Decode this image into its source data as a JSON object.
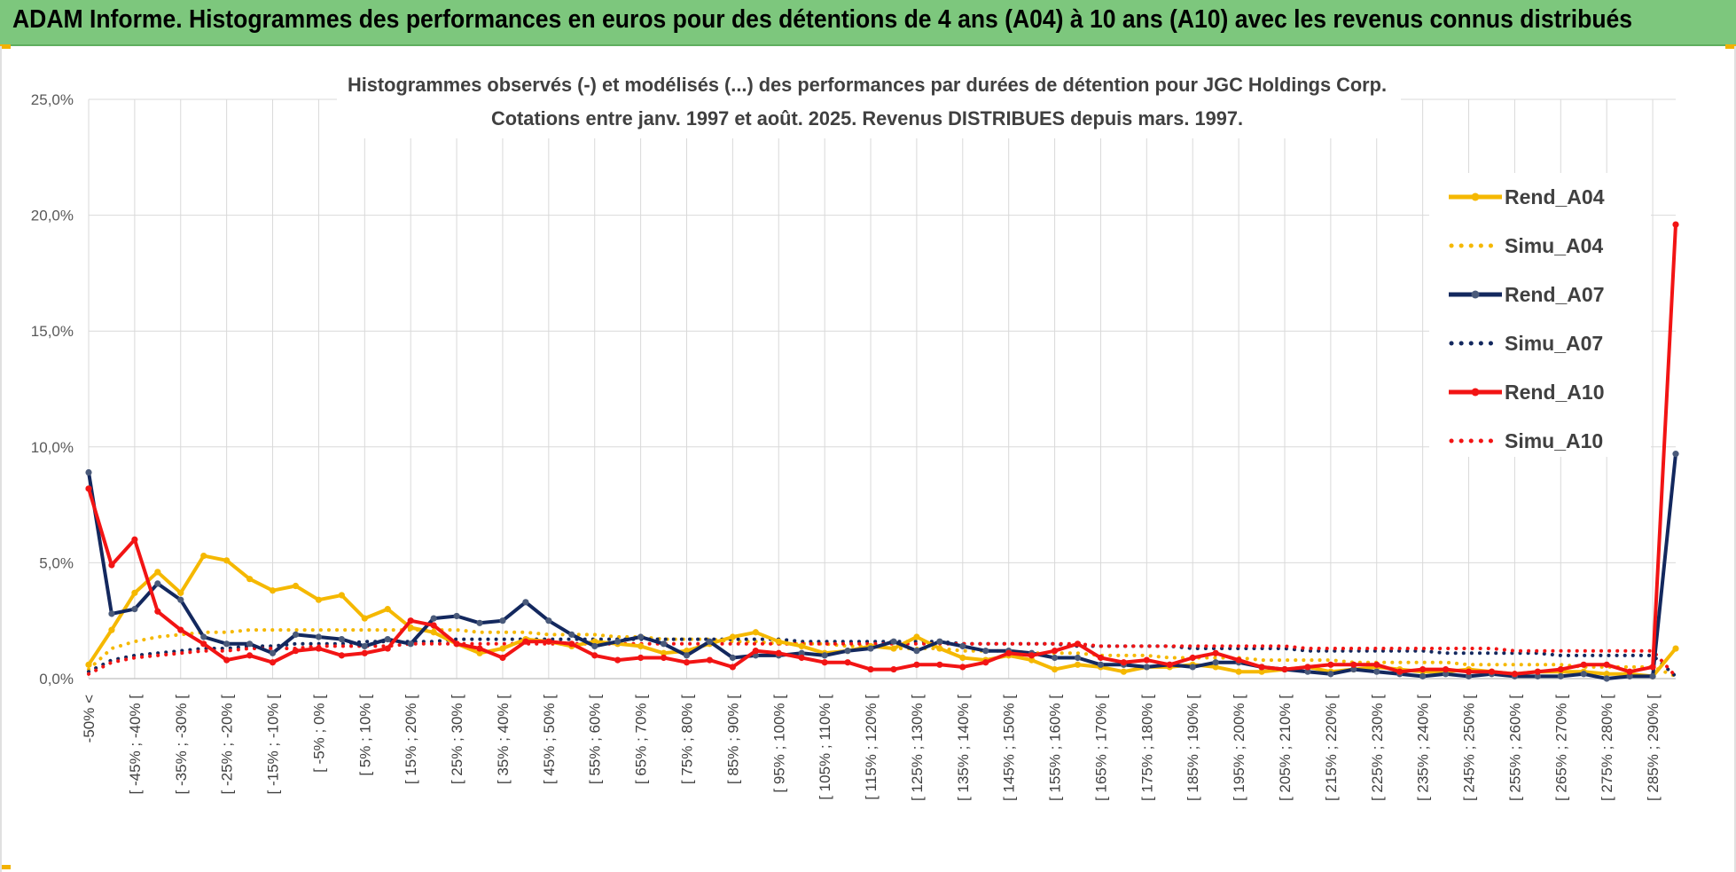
{
  "banner": {
    "title": "ADAM Informe. Histogrammes des performances en euros pour des détentions de 4 ans (A04) à 10 ans (A10) avec les revenus connus distribués"
  },
  "colors": {
    "banner": "#7dc77d",
    "a04": "#f5b800",
    "a07": "#13285e",
    "a10": "#f21414",
    "grid": "#d9d9d9"
  },
  "chart_data": {
    "type": "line",
    "title": "Histogrammes observés (-) et modélisés (...) des performances par durées de détention pour JGC Holdings Corp.",
    "subtitle": "Cotations entre janv. 1997 et août. 2025. Revenus DISTRIBUES depuis mars. 1997.",
    "ylim": [
      0,
      25
    ],
    "y_ticks": [
      "0,0%",
      "5,0%",
      "10,0%",
      "15,0%",
      "20,0%",
      "25,0%"
    ],
    "y_tick_values": [
      0,
      5,
      10,
      15,
      20,
      25
    ],
    "grid": true,
    "legend_position": "right",
    "category_count": 70,
    "x_tick_labels": [
      {
        "index": 0,
        "label": "-50% <"
      },
      {
        "index": 2,
        "label": "[ -45% ; -40% ["
      },
      {
        "index": 4,
        "label": "[ -35% ; -30% ["
      },
      {
        "index": 6,
        "label": "[ -25% ; -20% ["
      },
      {
        "index": 8,
        "label": "[ -15% ; -10% ["
      },
      {
        "index": 10,
        "label": "[ -5% ; 0% ["
      },
      {
        "index": 12,
        "label": "[ 5% ; 10% ["
      },
      {
        "index": 14,
        "label": "[ 15% ; 20% ["
      },
      {
        "index": 16,
        "label": "[ 25% ; 30% ["
      },
      {
        "index": 18,
        "label": "[ 35% ; 40% ["
      },
      {
        "index": 20,
        "label": "[ 45% ; 50% ["
      },
      {
        "index": 22,
        "label": "[ 55% ; 60% ["
      },
      {
        "index": 24,
        "label": "[ 65% ; 70% ["
      },
      {
        "index": 26,
        "label": "[ 75% ; 80% ["
      },
      {
        "index": 28,
        "label": "[ 85% ; 90% ["
      },
      {
        "index": 30,
        "label": "[ 95% ; 100% ["
      },
      {
        "index": 32,
        "label": "[ 105% ; 110% ["
      },
      {
        "index": 34,
        "label": "[ 115% ; 120% ["
      },
      {
        "index": 36,
        "label": "[ 125% ; 130% ["
      },
      {
        "index": 38,
        "label": "[ 135% ; 140% ["
      },
      {
        "index": 40,
        "label": "[ 145% ; 150% ["
      },
      {
        "index": 42,
        "label": "[ 155% ; 160% ["
      },
      {
        "index": 44,
        "label": "[ 165% ; 170% ["
      },
      {
        "index": 46,
        "label": "[ 175% ; 180% ["
      },
      {
        "index": 48,
        "label": "[ 185% ; 190% ["
      },
      {
        "index": 50,
        "label": "[ 195% ; 200% ["
      },
      {
        "index": 52,
        "label": "[ 205% ; 210% ["
      },
      {
        "index": 54,
        "label": "[ 215% ; 220% ["
      },
      {
        "index": 56,
        "label": "[ 225% ; 230% ["
      },
      {
        "index": 58,
        "label": "[ 235% ; 240% ["
      },
      {
        "index": 60,
        "label": "[ 245% ; 250% ["
      },
      {
        "index": 62,
        "label": "[ 255% ; 260% ["
      },
      {
        "index": 64,
        "label": "[ 265% ; 270% ["
      },
      {
        "index": 66,
        "label": "[ 275% ; 280% ["
      },
      {
        "index": 68,
        "label": "[ 285% ; 290% ["
      }
    ],
    "series": [
      {
        "name": "Rend_A04",
        "style": "solid",
        "color": "#f5b800",
        "values": [
          0.6,
          2.1,
          3.7,
          4.6,
          3.7,
          5.3,
          5.1,
          4.3,
          3.8,
          4.0,
          3.4,
          3.6,
          2.6,
          3.0,
          2.2,
          2.0,
          1.5,
          1.1,
          1.3,
          1.7,
          1.6,
          1.4,
          1.6,
          1.5,
          1.4,
          1.1,
          1.2,
          1.5,
          1.8,
          2.0,
          1.6,
          1.4,
          1.1,
          1.2,
          1.4,
          1.3,
          1.8,
          1.3,
          0.9,
          0.8,
          1.0,
          0.8,
          0.4,
          0.6,
          0.5,
          0.3,
          0.5,
          0.5,
          0.6,
          0.5,
          0.3,
          0.3,
          0.4,
          0.5,
          0.3,
          0.4,
          0.5,
          0.4,
          0.3,
          0.3,
          0.4,
          0.3,
          0.2,
          0.3,
          0.3,
          0.3,
          0.2,
          0.2,
          0.1,
          1.3
        ]
      },
      {
        "name": "Simu_A04",
        "style": "dotted",
        "color": "#f5b800",
        "values": [
          0.4,
          1.3,
          1.6,
          1.8,
          1.9,
          2.0,
          2.0,
          2.1,
          2.1,
          2.1,
          2.1,
          2.1,
          2.1,
          2.1,
          2.1,
          2.1,
          2.1,
          2.0,
          2.0,
          2.0,
          1.9,
          1.9,
          1.9,
          1.8,
          1.8,
          1.7,
          1.7,
          1.7,
          1.6,
          1.6,
          1.5,
          1.5,
          1.5,
          1.4,
          1.4,
          1.3,
          1.3,
          1.3,
          1.2,
          1.2,
          1.2,
          1.1,
          1.1,
          1.1,
          1.0,
          1.0,
          1.0,
          0.9,
          0.9,
          0.9,
          0.9,
          0.8,
          0.8,
          0.8,
          0.8,
          0.7,
          0.7,
          0.7,
          0.7,
          0.7,
          0.6,
          0.6,
          0.6,
          0.6,
          0.6,
          0.5,
          0.5,
          0.5,
          0.5,
          0.1
        ]
      },
      {
        "name": "Rend_A07",
        "style": "solid",
        "color": "#13285e",
        "values": [
          8.9,
          2.8,
          3.0,
          4.1,
          3.4,
          1.8,
          1.5,
          1.5,
          1.1,
          1.9,
          1.8,
          1.7,
          1.4,
          1.7,
          1.5,
          2.6,
          2.7,
          2.4,
          2.5,
          3.3,
          2.5,
          1.9,
          1.4,
          1.6,
          1.8,
          1.5,
          1.0,
          1.6,
          0.9,
          1.0,
          1.0,
          1.1,
          1.0,
          1.2,
          1.3,
          1.6,
          1.2,
          1.6,
          1.4,
          1.2,
          1.2,
          1.1,
          0.9,
          0.9,
          0.6,
          0.6,
          0.5,
          0.6,
          0.5,
          0.7,
          0.7,
          0.5,
          0.4,
          0.3,
          0.2,
          0.4,
          0.3,
          0.2,
          0.1,
          0.2,
          0.1,
          0.2,
          0.1,
          0.1,
          0.1,
          0.2,
          0.0,
          0.1,
          0.1,
          9.7
        ]
      },
      {
        "name": "Simu_A07",
        "style": "dotted",
        "color": "#13285e",
        "values": [
          0.3,
          0.8,
          1.0,
          1.1,
          1.2,
          1.3,
          1.3,
          1.4,
          1.4,
          1.5,
          1.5,
          1.5,
          1.6,
          1.6,
          1.6,
          1.6,
          1.7,
          1.7,
          1.7,
          1.7,
          1.7,
          1.7,
          1.7,
          1.7,
          1.7,
          1.7,
          1.7,
          1.7,
          1.7,
          1.7,
          1.7,
          1.6,
          1.6,
          1.6,
          1.6,
          1.6,
          1.6,
          1.6,
          1.5,
          1.5,
          1.5,
          1.5,
          1.5,
          1.4,
          1.4,
          1.4,
          1.4,
          1.4,
          1.3,
          1.3,
          1.3,
          1.3,
          1.3,
          1.2,
          1.2,
          1.2,
          1.2,
          1.2,
          1.2,
          1.1,
          1.1,
          1.1,
          1.1,
          1.1,
          1.0,
          1.0,
          1.0,
          1.0,
          1.0,
          0.1
        ]
      },
      {
        "name": "Rend_A10",
        "style": "solid",
        "color": "#f21414",
        "values": [
          8.2,
          4.9,
          6.0,
          2.9,
          2.1,
          1.5,
          0.8,
          1.0,
          0.7,
          1.2,
          1.3,
          1.0,
          1.1,
          1.3,
          2.5,
          2.3,
          1.5,
          1.3,
          0.9,
          1.6,
          1.6,
          1.5,
          1.0,
          0.8,
          0.9,
          0.9,
          0.7,
          0.8,
          0.5,
          1.2,
          1.1,
          0.9,
          0.7,
          0.7,
          0.4,
          0.4,
          0.6,
          0.6,
          0.5,
          0.7,
          1.1,
          1.0,
          1.2,
          1.5,
          0.9,
          0.7,
          0.8,
          0.6,
          0.9,
          1.1,
          0.8,
          0.5,
          0.4,
          0.5,
          0.6,
          0.6,
          0.6,
          0.3,
          0.4,
          0.4,
          0.3,
          0.3,
          0.2,
          0.3,
          0.4,
          0.6,
          0.6,
          0.3,
          0.5,
          19.6
        ]
      },
      {
        "name": "Simu_A10",
        "style": "dotted",
        "color": "#f21414",
        "values": [
          0.2,
          0.7,
          0.9,
          1.0,
          1.1,
          1.2,
          1.2,
          1.3,
          1.3,
          1.3,
          1.4,
          1.4,
          1.4,
          1.4,
          1.5,
          1.5,
          1.5,
          1.5,
          1.5,
          1.5,
          1.5,
          1.5,
          1.5,
          1.5,
          1.5,
          1.5,
          1.5,
          1.5,
          1.5,
          1.5,
          1.5,
          1.5,
          1.5,
          1.5,
          1.5,
          1.5,
          1.5,
          1.5,
          1.5,
          1.5,
          1.5,
          1.5,
          1.5,
          1.5,
          1.4,
          1.4,
          1.4,
          1.4,
          1.4,
          1.4,
          1.4,
          1.4,
          1.4,
          1.3,
          1.3,
          1.3,
          1.3,
          1.3,
          1.3,
          1.3,
          1.3,
          1.3,
          1.2,
          1.2,
          1.2,
          1.2,
          1.2,
          1.2,
          1.2,
          0.1
        ]
      }
    ]
  }
}
